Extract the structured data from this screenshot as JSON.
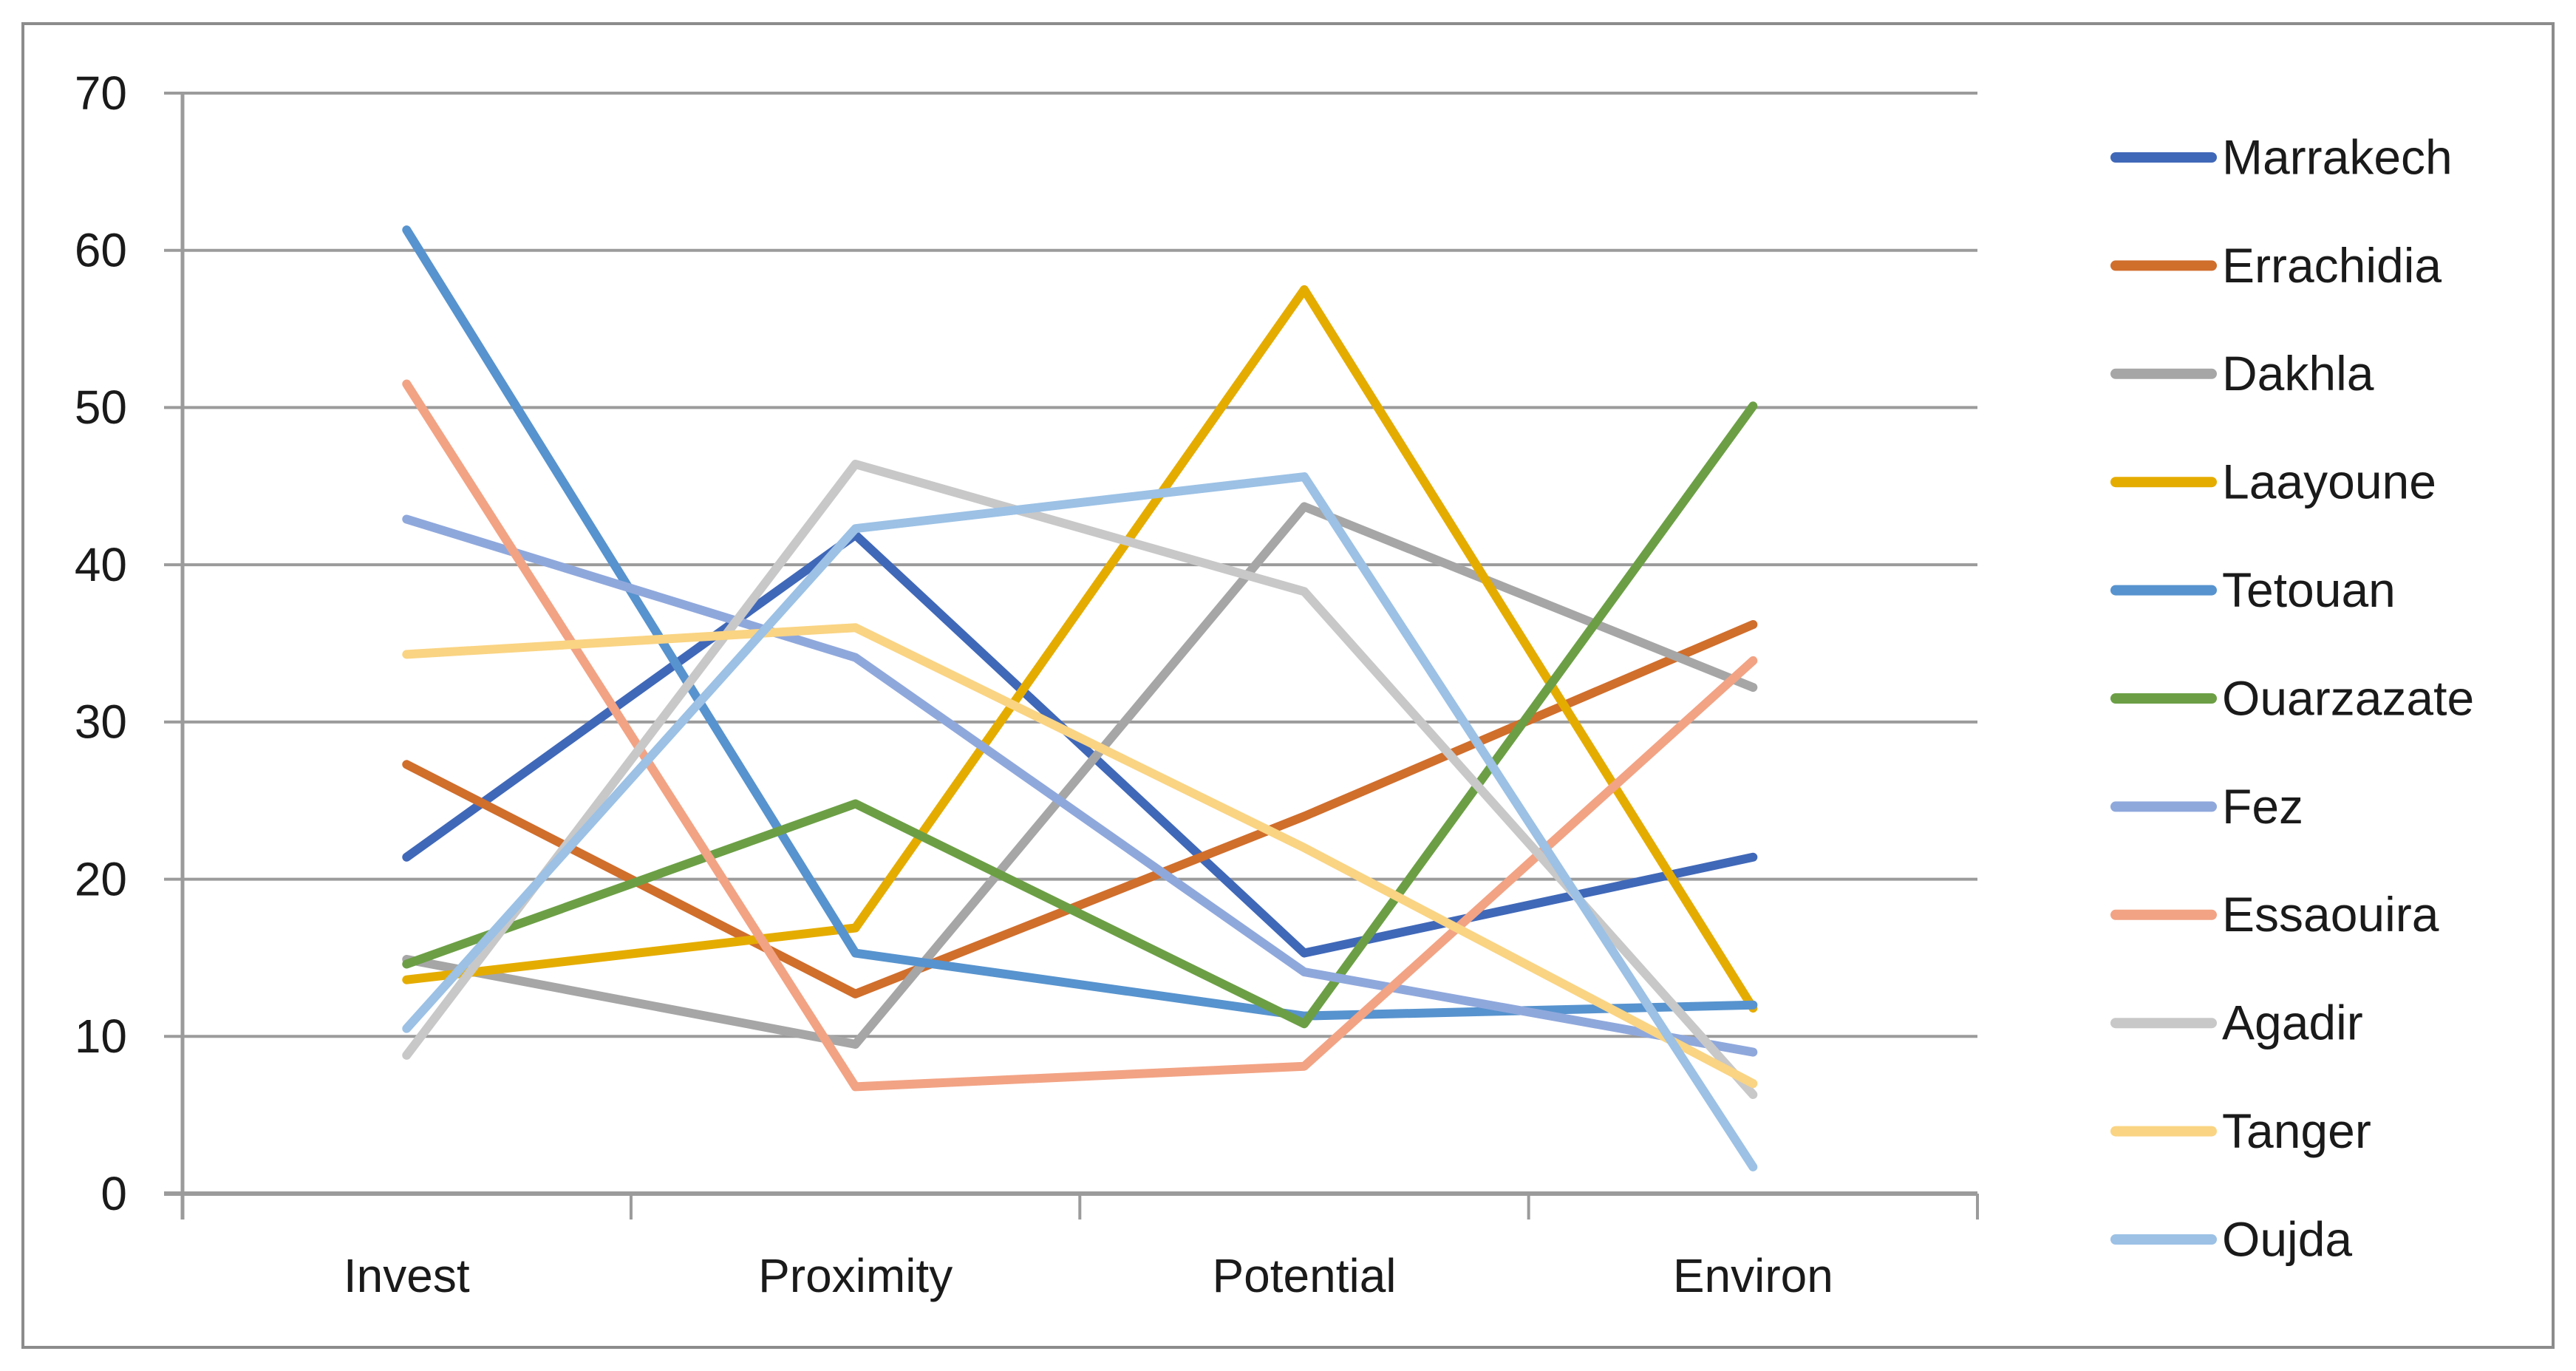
{
  "chart_data": {
    "type": "line",
    "title": "",
    "xlabel": "",
    "ylabel": "",
    "categories": [
      "Invest",
      "Proximity",
      "Potential",
      "Environ"
    ],
    "series": [
      {
        "name": "Marrakech",
        "color": "#4068B8",
        "values": [
          21.4,
          41.9,
          15.3,
          21.4
        ]
      },
      {
        "name": "Errachidia",
        "color": "#D06E2C",
        "values": [
          27.3,
          12.7,
          24.0,
          36.2
        ]
      },
      {
        "name": "Dakhla",
        "color": "#A6A6A6",
        "values": [
          14.9,
          9.5,
          43.7,
          32.2
        ]
      },
      {
        "name": "Laayoune",
        "color": "#E5AC00",
        "values": [
          13.6,
          16.9,
          57.5,
          11.8
        ]
      },
      {
        "name": "Tetouan",
        "color": "#5793CE",
        "values": [
          61.3,
          15.3,
          11.3,
          12.0
        ]
      },
      {
        "name": "Ouarzazate",
        "color": "#6C9F45",
        "values": [
          14.6,
          24.8,
          10.8,
          50.1
        ]
      },
      {
        "name": "Fez",
        "color": "#8FA8DC",
        "values": [
          42.9,
          34.1,
          14.1,
          9.0
        ]
      },
      {
        "name": "Essaouira",
        "color": "#F2A384",
        "values": [
          51.5,
          6.8,
          8.1,
          33.9
        ]
      },
      {
        "name": "Agadir",
        "color": "#C8C8C8",
        "values": [
          8.8,
          46.4,
          38.3,
          6.3
        ]
      },
      {
        "name": "Tanger",
        "color": "#FAD483",
        "values": [
          34.3,
          36.0,
          22.0,
          7.0
        ]
      },
      {
        "name": "Oujda",
        "color": "#9CC1E5",
        "values": [
          10.5,
          42.3,
          45.6,
          1.7
        ]
      }
    ],
    "ylim": [
      0,
      70
    ],
    "ytick_step": 10,
    "ytick_labels": [
      "0",
      "10",
      "20",
      "30",
      "40",
      "50",
      "60",
      "70"
    ],
    "grid": true,
    "legend_position": "right"
  },
  "style_colors": {
    "gridline": "#9B9B9B",
    "axis_line": "#9B9B9B",
    "chart_border": "#8C8C8C",
    "text": "#1A1A1A",
    "background": "#FFFFFF"
  }
}
